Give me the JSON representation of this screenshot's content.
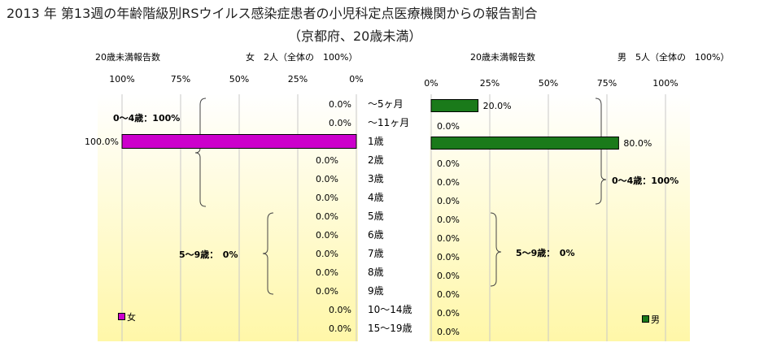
{
  "title_line1": "2013 年 第13週の年齢階級別RSウイルス感染症患者の小児科定点医療機関からの報告割合",
  "title_line2": "（京都府、20歳未満）",
  "age_categories": [
    "～5ヶ月",
    "～11ヶ月",
    "1歳",
    "2歳",
    "3歳",
    "4歳",
    "5歳",
    "6歳",
    "7歳",
    "8歳",
    "9歳",
    "10～14歳",
    "15～19歳"
  ],
  "chart_data": [
    {
      "type": "bar",
      "orientation": "horizontal",
      "direction": "right-to-left",
      "header_label": "20歳未満報告数",
      "header_count": "女　2人（全体の　100%）",
      "series": [
        {
          "name": "女",
          "color": "#cc00cc",
          "values": [
            0,
            0,
            100,
            0,
            0,
            0,
            0,
            0,
            0,
            0,
            0,
            0,
            0
          ]
        }
      ],
      "value_labels": [
        "0.0%",
        "0.0%",
        "100.0%",
        "0.0%",
        "0.0%",
        "0.0%",
        "0.0%",
        "0.0%",
        "0.0%",
        "0.0%",
        "0.0%",
        "0.0%",
        "0.0%"
      ],
      "xlim": [
        0,
        100
      ],
      "ticks": [
        "100%",
        "75%",
        "50%",
        "25%",
        "0%"
      ],
      "group_labels": [
        "0～4歳：100%",
        "5～9歳：　0%"
      ],
      "legend": "女",
      "grid": true
    },
    {
      "type": "bar",
      "orientation": "horizontal",
      "direction": "left-to-right",
      "header_label": "20歳未満報告数",
      "header_count": "男　5人（全体の　100%）",
      "series": [
        {
          "name": "男",
          "color": "#1a7a1a",
          "values": [
            20,
            0,
            80,
            0,
            0,
            0,
            0,
            0,
            0,
            0,
            0,
            0,
            0
          ]
        }
      ],
      "value_labels": [
        "20.0%",
        "0.0%",
        "80.0%",
        "0.0%",
        "0.0%",
        "0.0%",
        "0.0%",
        "0.0%",
        "0.0%",
        "0.0%",
        "0.0%",
        "0.0%",
        "0.0%"
      ],
      "xlim": [
        0,
        100
      ],
      "ticks": [
        "0%",
        "25%",
        "50%",
        "75%",
        "100%"
      ],
      "group_labels": [
        "0～4歳：100%",
        "5～9歳：　0%"
      ],
      "legend": "男",
      "grid": true
    }
  ]
}
